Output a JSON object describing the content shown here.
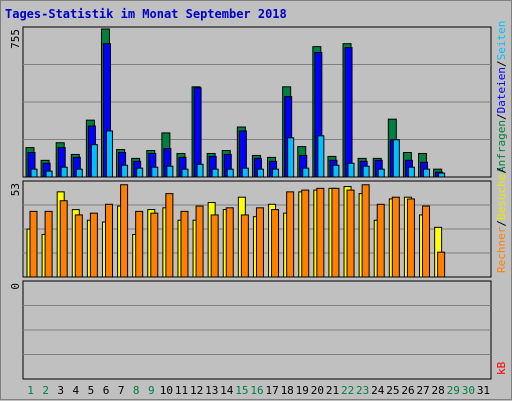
{
  "title": "Tages-Statistik im Monat September 2018",
  "colors": {
    "hits": "#008040",
    "files": "#0000ff",
    "pages": "#00c0ff",
    "visits": "#ffff00",
    "sites": "#ff8000",
    "kbytes": "#ff0000",
    "weekday_label": "#000000",
    "weekend_label": "#008040",
    "title": "#0000cc",
    "background": "#c0c0c0",
    "plot_background": "#c0c0c0",
    "grid": "#808080"
  },
  "chart_data": [
    {
      "type": "bar",
      "name": "upper-panel",
      "categories": [
        "1",
        "2",
        "3",
        "4",
        "5",
        "6",
        "7",
        "8",
        "9",
        "10",
        "11",
        "12",
        "13",
        "14",
        "15",
        "16",
        "17",
        "18",
        "19",
        "20",
        "21",
        "22",
        "23",
        "24",
        "25",
        "26",
        "27",
        "28",
        "29",
        "30",
        "31"
      ],
      "ylim": [
        0,
        755
      ],
      "y_tick_label": "755",
      "right_label_parts": [
        {
          "text": "Anfragen",
          "color": "#008040"
        },
        {
          "text": "/",
          "color": "#000000"
        },
        {
          "text": "Dateien",
          "color": "#0000ff"
        },
        {
          "text": "/",
          "color": "#000000"
        },
        {
          "text": "Seiten",
          "color": "#00c0ff"
        }
      ],
      "series": [
        {
          "key": "hits",
          "values": [
            150,
            85,
            175,
            115,
            290,
            755,
            140,
            95,
            135,
            225,
            120,
            460,
            120,
            135,
            255,
            110,
            100,
            460,
            155,
            665,
            105,
            680,
            95,
            95,
            295,
            125,
            120,
            40,
            0,
            0,
            0
          ]
        },
        {
          "key": "files",
          "values": [
            125,
            70,
            150,
            100,
            260,
            680,
            125,
            80,
            120,
            145,
            100,
            455,
            105,
            115,
            235,
            95,
            80,
            410,
            110,
            635,
            85,
            660,
            80,
            85,
            190,
            85,
            75,
            25,
            0,
            0,
            0
          ]
        },
        {
          "key": "pages",
          "values": [
            40,
            30,
            50,
            40,
            165,
            235,
            60,
            45,
            50,
            55,
            40,
            65,
            40,
            40,
            45,
            40,
            40,
            200,
            45,
            210,
            60,
            70,
            55,
            40,
            190,
            50,
            40,
            20,
            0,
            0,
            0
          ]
        }
      ]
    },
    {
      "type": "bar",
      "name": "middle-panel",
      "categories": [
        "1",
        "2",
        "3",
        "4",
        "5",
        "6",
        "7",
        "8",
        "9",
        "10",
        "11",
        "12",
        "13",
        "14",
        "15",
        "16",
        "17",
        "18",
        "19",
        "20",
        "21",
        "22",
        "23",
        "24",
        "25",
        "26",
        "27",
        "28",
        "29",
        "30",
        "31"
      ],
      "ylim": [
        0,
        53
      ],
      "y_tick_label": "53",
      "right_label_parts": [
        {
          "text": "Rechner",
          "color": "#ff8000"
        },
        {
          "text": "/",
          "color": "#000000"
        },
        {
          "text": "Besuche",
          "color": "#e8e800"
        },
        {
          "text": "/",
          "color": "#000000"
        }
      ],
      "series": [
        {
          "key": "visits",
          "values": [
            27,
            24,
            48,
            38,
            32,
            31,
            40,
            24,
            38,
            39,
            32,
            32,
            42,
            38,
            45,
            34,
            41,
            36,
            48,
            49,
            50,
            51,
            47,
            32,
            44,
            45,
            35,
            28,
            0,
            0,
            0
          ]
        },
        {
          "key": "sites",
          "values": [
            37,
            37,
            43,
            35,
            36,
            41,
            52,
            37,
            36,
            47,
            37,
            40,
            35,
            39,
            35,
            39,
            38,
            48,
            49,
            50,
            50,
            49,
            52,
            41,
            45,
            44,
            40,
            14,
            0,
            0,
            0
          ]
        }
      ]
    },
    {
      "type": "bar",
      "name": "lower-panel",
      "categories": [
        "1",
        "2",
        "3",
        "4",
        "5",
        "6",
        "7",
        "8",
        "9",
        "10",
        "11",
        "12",
        "13",
        "14",
        "15",
        "16",
        "17",
        "18",
        "19",
        "20",
        "21",
        "22",
        "23",
        "24",
        "25",
        "26",
        "27",
        "28",
        "29",
        "30",
        "31"
      ],
      "ylim": [
        0,
        1
      ],
      "y_tick_label": "0",
      "right_label_parts": [
        {
          "text": "kB",
          "color": "#ff0000"
        }
      ],
      "series": [
        {
          "key": "kbytes",
          "values": [
            0,
            0,
            0,
            0,
            0,
            0,
            0,
            0,
            0,
            0,
            0,
            0,
            0,
            0,
            0,
            0,
            0,
            0,
            0,
            0,
            0,
            0,
            0,
            0,
            0,
            0,
            0,
            0,
            0,
            0,
            0
          ]
        }
      ]
    }
  ],
  "x_axis": {
    "labels": [
      "1",
      "2",
      "3",
      "4",
      "5",
      "6",
      "7",
      "8",
      "9",
      "10",
      "11",
      "12",
      "13",
      "14",
      "15",
      "16",
      "17",
      "18",
      "19",
      "20",
      "21",
      "22",
      "23",
      "24",
      "25",
      "26",
      "27",
      "28",
      "29",
      "30",
      "31"
    ],
    "weekend": [
      1,
      2,
      8,
      9,
      15,
      16,
      22,
      23,
      29,
      30
    ]
  }
}
